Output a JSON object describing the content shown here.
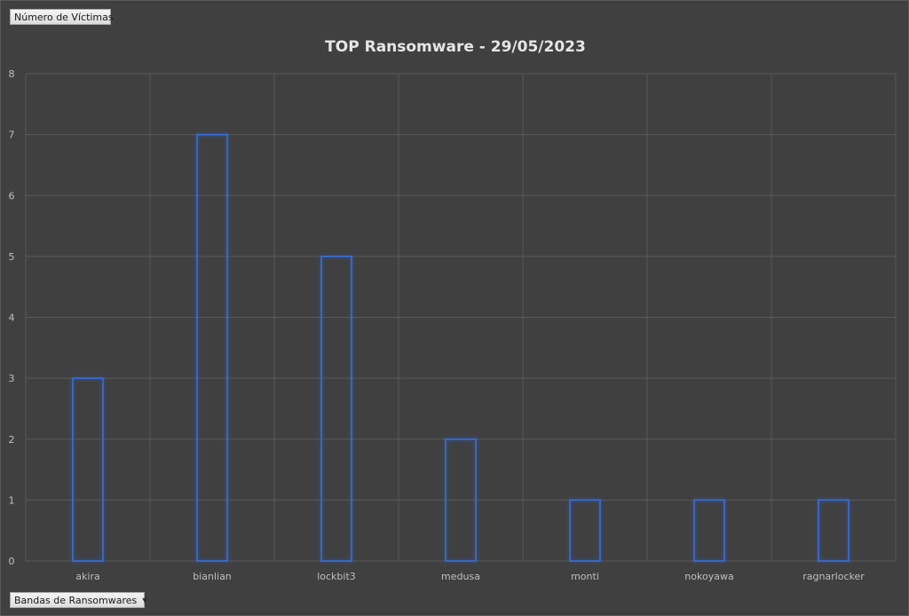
{
  "field_buttons": {
    "values_label": "Número de Víctimas",
    "axis_label": "Bandas de Ransomwares"
  },
  "chart_data": {
    "type": "bar",
    "title": "TOP Ransomware - 29/05/2023",
    "categories": [
      "akira",
      "bianlian",
      "lockbit3",
      "medusa",
      "monti",
      "nokoyawa",
      "ragnarlocker"
    ],
    "values": [
      3,
      7,
      5,
      2,
      1,
      1,
      1
    ],
    "ylim": [
      0,
      8
    ],
    "yticks": [
      0,
      1,
      2,
      3,
      4,
      5,
      6,
      7,
      8
    ],
    "grid": true,
    "colors": {
      "background": "#404040",
      "bar_outline": "#3b6fd8",
      "gridline": "#595959",
      "text": "#bfbfbf",
      "title": "#e6e6e6"
    }
  }
}
